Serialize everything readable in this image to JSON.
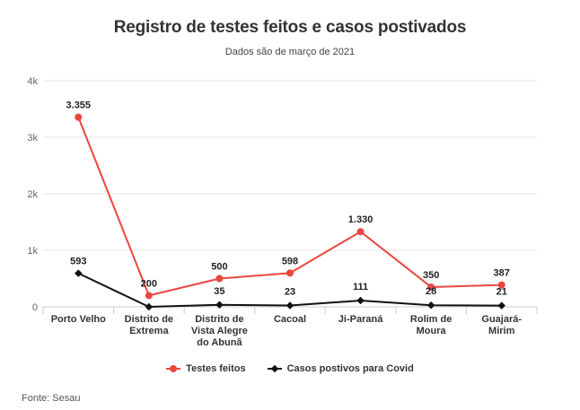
{
  "chart_data": {
    "type": "line",
    "title": "Registro de testes feitos e casos postivados",
    "subtitle": "Dados são de março de 2021",
    "categories": [
      "Porto Velho",
      "Distrito de Extrema",
      "Distrito de Vista Alegre do Abunã",
      "Cacoal",
      "Ji-Paraná",
      "Rolim de Moura",
      "Guajará-Mirim"
    ],
    "category_lines": [
      [
        "Porto Velho"
      ],
      [
        "Distrito de",
        "Extrema"
      ],
      [
        "Distrito de",
        "Vista Alegre",
        "do Abunã"
      ],
      [
        "Cacoal"
      ],
      [
        "Ji-Paraná"
      ],
      [
        "Rolim de",
        "Moura"
      ],
      [
        "Guajará-",
        "Mirim"
      ]
    ],
    "series": [
      {
        "name": "Testes feitos",
        "color": "#e8473f",
        "marker": "circle",
        "values": [
          3355,
          200,
          500,
          598,
          1330,
          350,
          387
        ],
        "labels": [
          "3.355",
          "200",
          "500",
          "598",
          "1.330",
          "350",
          "387"
        ]
      },
      {
        "name": "Casos postivos para Covid",
        "color": "#111111",
        "marker": "diamond",
        "values": [
          593,
          0,
          35,
          23,
          111,
          28,
          21
        ],
        "labels": [
          "593",
          "",
          "35",
          "23",
          "111",
          "28",
          "21"
        ]
      }
    ],
    "ylim": [
      0,
      4000
    ],
    "yticks": [
      0,
      1000,
      2000,
      3000,
      4000
    ],
    "ytick_labels": [
      "0",
      "1k",
      "2k",
      "3k",
      "4k"
    ],
    "xlabel": "",
    "ylabel": "",
    "grid": true,
    "legend": "bottom-center"
  },
  "source": "Fonte: Sesau"
}
